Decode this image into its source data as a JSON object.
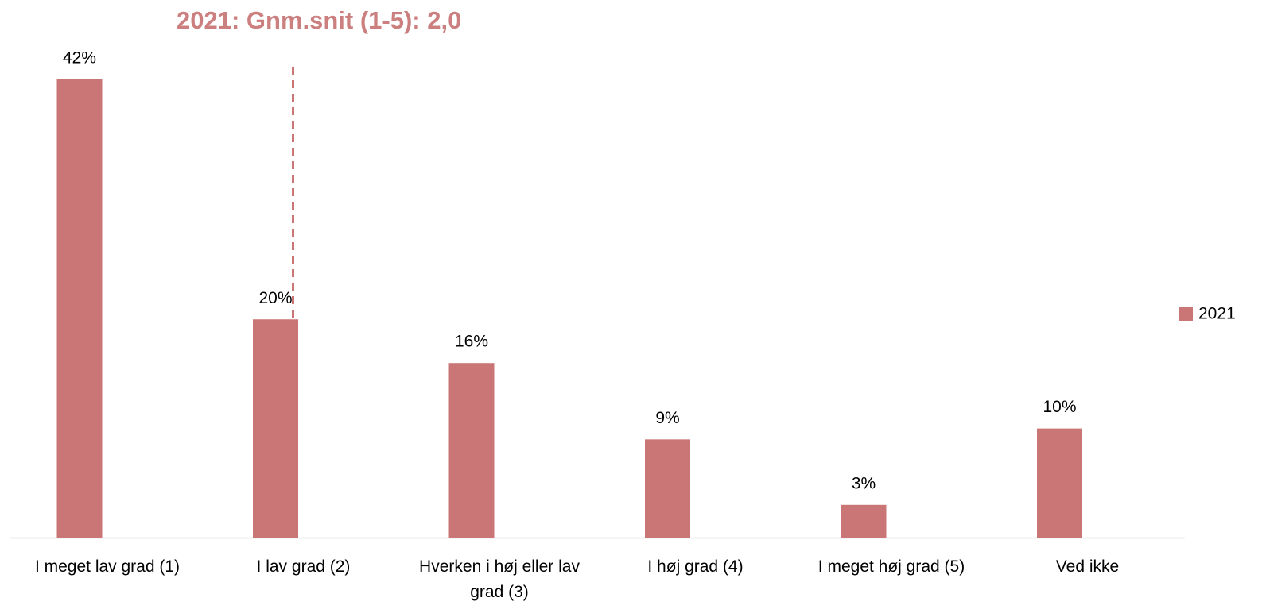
{
  "chart_data": {
    "type": "bar",
    "title": "2021: Gnm.snit (1-5): 2,0",
    "categories": [
      "I meget lav grad (1)",
      "I lav grad (2)",
      "Hverken i høj eller lav grad (3)",
      "I høj grad (4)",
      "I meget høj grad (5)",
      "Ved ikke"
    ],
    "series": [
      {
        "name": "2021",
        "color": "#cb7676",
        "values": [
          42,
          20,
          16,
          9,
          3,
          10
        ],
        "value_labels": [
          "42%",
          "20%",
          "16%",
          "9%",
          "3%",
          "10%"
        ]
      }
    ],
    "mean": 2,
    "ylim": [
      0,
      42
    ],
    "legend": "right"
  }
}
